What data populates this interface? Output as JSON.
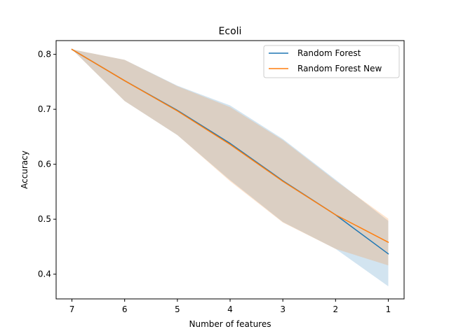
{
  "chart_data": {
    "type": "line",
    "title": "Ecoli",
    "xlabel": "Number of features",
    "ylabel": "Accuracy",
    "x": [
      7,
      6,
      5,
      4,
      3,
      2,
      1
    ],
    "x_inverted": true,
    "xlim": [
      7.3,
      0.7
    ],
    "ylim": [
      0.355,
      0.825
    ],
    "xticks": [
      7,
      6,
      5,
      4,
      3,
      2,
      1
    ],
    "xtick_labels": [
      "7",
      "6",
      "5",
      "4",
      "3",
      "2",
      "1"
    ],
    "yticks": [
      0.4,
      0.5,
      0.6,
      0.7,
      0.8
    ],
    "ytick_labels": [
      "0.4",
      "0.5",
      "0.6",
      "0.7",
      "0.8"
    ],
    "grid": false,
    "legend_position": "upper right",
    "series": [
      {
        "name": "Random Forest",
        "color": "#1f77b4",
        "values": [
          0.809,
          0.752,
          0.698,
          0.638,
          0.57,
          0.508,
          0.437
        ],
        "upper": [
          0.809,
          0.79,
          0.743,
          0.707,
          0.646,
          0.572,
          0.497
        ],
        "lower": [
          0.809,
          0.715,
          0.653,
          0.571,
          0.495,
          0.446,
          0.378
        ]
      },
      {
        "name": "Random Forest New",
        "color": "#ff7f0e",
        "values": [
          0.809,
          0.752,
          0.697,
          0.636,
          0.569,
          0.508,
          0.458
        ],
        "upper": [
          0.809,
          0.79,
          0.742,
          0.704,
          0.644,
          0.57,
          0.501
        ],
        "lower": [
          0.809,
          0.715,
          0.653,
          0.569,
          0.494,
          0.446,
          0.416
        ]
      }
    ]
  }
}
